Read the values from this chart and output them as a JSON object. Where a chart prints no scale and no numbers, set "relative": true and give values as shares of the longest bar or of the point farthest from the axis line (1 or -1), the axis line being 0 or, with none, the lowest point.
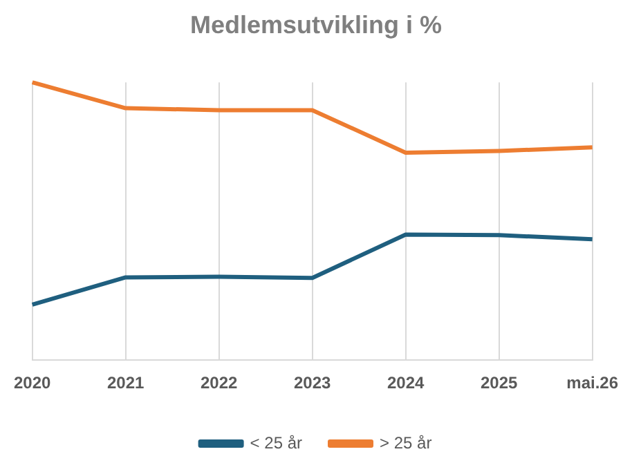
{
  "chart_data": {
    "type": "line",
    "title": "Medlemsutvikling i %",
    "relative": true,
    "grid": "x",
    "legend": "bottom",
    "marker": "none",
    "categories": [
      "2020",
      "2021",
      "2022",
      "2023",
      "2024",
      "2025",
      "mai.26"
    ],
    "series": [
      {
        "name": "< 25 år",
        "color": "#1f5f7f",
        "values": [
          0.2,
          0.298,
          0.3,
          0.296,
          0.452,
          0.45,
          0.435
        ]
      },
      {
        "name": "> 25 år",
        "color": "#ed7d31",
        "values": [
          1.0,
          0.907,
          0.9,
          0.9,
          0.747,
          0.753,
          0.766
        ]
      }
    ]
  }
}
